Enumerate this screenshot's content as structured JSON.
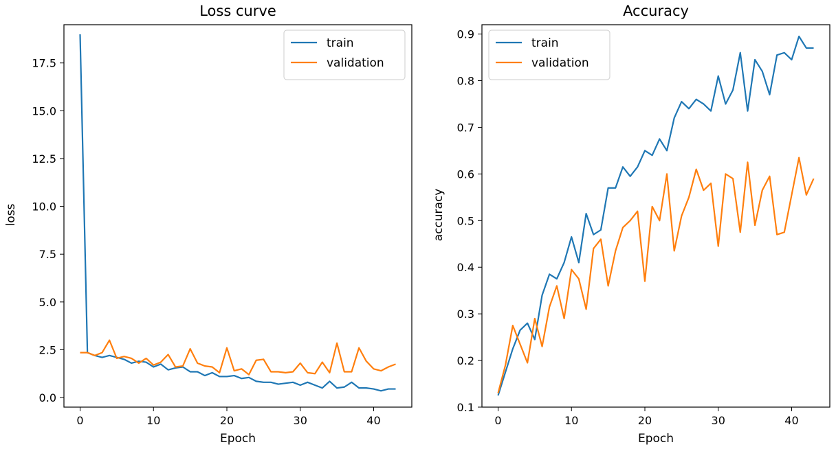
{
  "chart_data": [
    {
      "type": "line",
      "title": "Loss curve",
      "xlabel": "Epoch",
      "ylabel": "loss",
      "xlim": [
        -2.2,
        45.2
      ],
      "ylim": [
        -0.5,
        19.5
      ],
      "xticks": [
        0,
        10,
        20,
        30,
        40
      ],
      "xtick_labels": [
        "0",
        "10",
        "20",
        "30",
        "40"
      ],
      "yticks": [
        0,
        2.5,
        5,
        7.5,
        10,
        12.5,
        15,
        17.5
      ],
      "ytick_labels": [
        "0.0",
        "2.5",
        "5.0",
        "7.5",
        "10.0",
        "12.5",
        "15.0",
        "17.5"
      ],
      "grid": false,
      "legend_position": "top-right",
      "x": [
        0,
        1,
        2,
        3,
        4,
        5,
        6,
        7,
        8,
        9,
        10,
        11,
        12,
        13,
        14,
        15,
        16,
        17,
        18,
        19,
        20,
        21,
        22,
        23,
        24,
        25,
        26,
        27,
        28,
        29,
        30,
        31,
        32,
        33,
        34,
        35,
        36,
        37,
        38,
        39,
        40,
        41,
        42,
        43
      ],
      "series": [
        {
          "name": "train",
          "color": "#1f77b4",
          "values": [
            19.0,
            2.35,
            2.2,
            2.1,
            2.2,
            2.1,
            2.0,
            1.8,
            1.9,
            1.85,
            1.6,
            1.75,
            1.45,
            1.55,
            1.6,
            1.35,
            1.35,
            1.15,
            1.3,
            1.1,
            1.1,
            1.15,
            1.0,
            1.05,
            0.85,
            0.8,
            0.8,
            0.7,
            0.75,
            0.8,
            0.65,
            0.8,
            0.65,
            0.5,
            0.85,
            0.5,
            0.55,
            0.8,
            0.5,
            0.5,
            0.45,
            0.35,
            0.45,
            0.45
          ]
        },
        {
          "name": "validation",
          "color": "#ff7f0e",
          "values": [
            2.35,
            2.35,
            2.2,
            2.35,
            3.0,
            2.05,
            2.15,
            2.05,
            1.8,
            2.05,
            1.7,
            1.85,
            2.25,
            1.6,
            1.65,
            2.55,
            1.8,
            1.65,
            1.6,
            1.3,
            2.6,
            1.4,
            1.5,
            1.2,
            1.95,
            2.0,
            1.35,
            1.35,
            1.3,
            1.35,
            1.8,
            1.3,
            1.25,
            1.85,
            1.3,
            2.85,
            1.35,
            1.35,
            2.6,
            1.9,
            1.5,
            1.4,
            1.6,
            1.75
          ]
        }
      ]
    },
    {
      "type": "line",
      "title": "Accuracy",
      "xlabel": "Epoch",
      "ylabel": "accuracy",
      "xlim": [
        -2.2,
        45.2
      ],
      "ylim": [
        0.1,
        0.92
      ],
      "xticks": [
        0,
        10,
        20,
        30,
        40
      ],
      "xtick_labels": [
        "0",
        "10",
        "20",
        "30",
        "40"
      ],
      "yticks": [
        0.1,
        0.2,
        0.3,
        0.4,
        0.5,
        0.6,
        0.7,
        0.8,
        0.9
      ],
      "ytick_labels": [
        "0.1",
        "0.2",
        "0.3",
        "0.4",
        "0.5",
        "0.6",
        "0.7",
        "0.8",
        "0.9"
      ],
      "grid": false,
      "legend_position": "top-left",
      "x": [
        0,
        1,
        2,
        3,
        4,
        5,
        6,
        7,
        8,
        9,
        10,
        11,
        12,
        13,
        14,
        15,
        16,
        17,
        18,
        19,
        20,
        21,
        22,
        23,
        24,
        25,
        26,
        27,
        28,
        29,
        30,
        31,
        32,
        33,
        34,
        35,
        36,
        37,
        38,
        39,
        40,
        41,
        42,
        43
      ],
      "series": [
        {
          "name": "train",
          "color": "#1f77b4",
          "values": [
            0.125,
            0.175,
            0.225,
            0.265,
            0.28,
            0.245,
            0.34,
            0.385,
            0.375,
            0.41,
            0.465,
            0.41,
            0.515,
            0.47,
            0.48,
            0.57,
            0.57,
            0.615,
            0.595,
            0.615,
            0.65,
            0.64,
            0.675,
            0.65,
            0.72,
            0.755,
            0.74,
            0.76,
            0.75,
            0.735,
            0.81,
            0.75,
            0.78,
            0.86,
            0.735,
            0.845,
            0.82,
            0.77,
            0.855,
            0.86,
            0.845,
            0.895,
            0.87,
            0.87
          ]
        },
        {
          "name": "validation",
          "color": "#ff7f0e",
          "values": [
            0.13,
            0.19,
            0.275,
            0.235,
            0.195,
            0.29,
            0.23,
            0.315,
            0.36,
            0.29,
            0.395,
            0.375,
            0.31,
            0.44,
            0.46,
            0.36,
            0.435,
            0.485,
            0.5,
            0.52,
            0.37,
            0.53,
            0.5,
            0.6,
            0.435,
            0.51,
            0.55,
            0.61,
            0.565,
            0.58,
            0.445,
            0.6,
            0.59,
            0.475,
            0.625,
            0.49,
            0.565,
            0.595,
            0.47,
            0.475,
            0.555,
            0.635,
            0.555,
            0.59
          ]
        }
      ]
    }
  ]
}
